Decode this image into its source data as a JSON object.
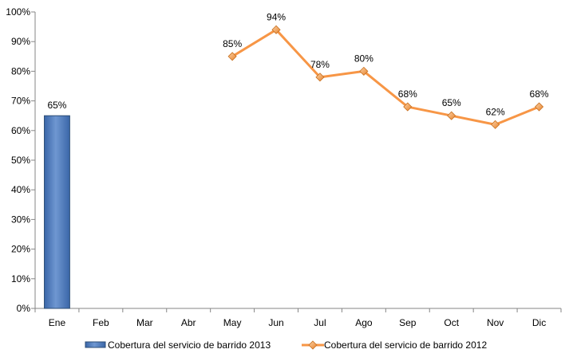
{
  "chart_data": {
    "type": "bar",
    "categories": [
      "Ene",
      "Feb",
      "Mar",
      "Abr",
      "May",
      "Jun",
      "Jul",
      "Ago",
      "Sep",
      "Oct",
      "Nov",
      "Dic"
    ],
    "series": [
      {
        "name": "Cobertura del servicio de barrido 2013",
        "type": "bar",
        "color": "#4F81BD",
        "values": [
          65,
          null,
          null,
          null,
          null,
          null,
          null,
          null,
          null,
          null,
          null,
          null
        ],
        "labels": [
          "65%",
          null,
          null,
          null,
          null,
          null,
          null,
          null,
          null,
          null,
          null,
          null
        ]
      },
      {
        "name": "Cobertura del servicio de barrido 2012",
        "type": "line",
        "color": "#F79646",
        "values": [
          null,
          null,
          null,
          null,
          85,
          94,
          78,
          80,
          68,
          65,
          62,
          68
        ],
        "labels": [
          null,
          null,
          null,
          null,
          "85%",
          "94%",
          "78%",
          "80%",
          "68%",
          "65%",
          "62%",
          "68%"
        ]
      }
    ],
    "ylim": [
      0,
      100
    ],
    "yticks": [
      "0%",
      "10%",
      "20%",
      "30%",
      "40%",
      "50%",
      "60%",
      "70%",
      "80%",
      "90%",
      "100%"
    ],
    "grid": false,
    "legend_position": "bottom"
  }
}
